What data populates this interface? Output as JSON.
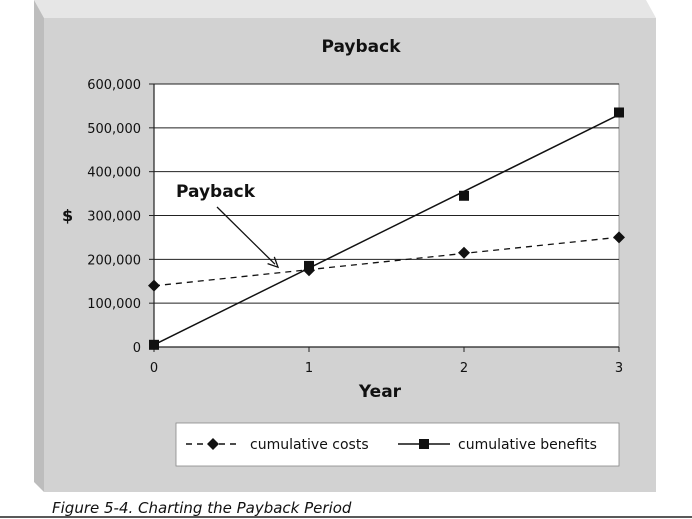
{
  "caption": "Figure 5-4. Charting the Payback Period",
  "chart_data": {
    "type": "line",
    "title": "Payback",
    "xlabel": "Year",
    "ylabel": "$",
    "x": [
      0,
      1,
      2,
      3
    ],
    "xticks": [
      "0",
      "1",
      "2",
      "3"
    ],
    "ylim": [
      0,
      600000
    ],
    "yticks": [
      {
        "value": 0,
        "label": "0"
      },
      {
        "value": 100000,
        "label": "100,000"
      },
      {
        "value": 200000,
        "label": "200,000"
      },
      {
        "value": 300000,
        "label": "300,000"
      },
      {
        "value": 400000,
        "label": "400,000"
      },
      {
        "value": 500000,
        "label": "500,000"
      },
      {
        "value": 600000,
        "label": "600,000"
      }
    ],
    "grid": true,
    "legend": "bottom",
    "series": [
      {
        "name": "cumulative costs",
        "values": [
          140000,
          175000,
          215000,
          250000
        ],
        "marker": "diamond",
        "line": "dashed",
        "trend": true
      },
      {
        "name": "cumulative benefits",
        "values": [
          5000,
          185000,
          345000,
          535000
        ],
        "marker": "square",
        "line": "solid",
        "trend": true
      }
    ],
    "annotation": {
      "text": "Payback",
      "points_to_x": 0.8,
      "points_to_y": 182000
    }
  }
}
